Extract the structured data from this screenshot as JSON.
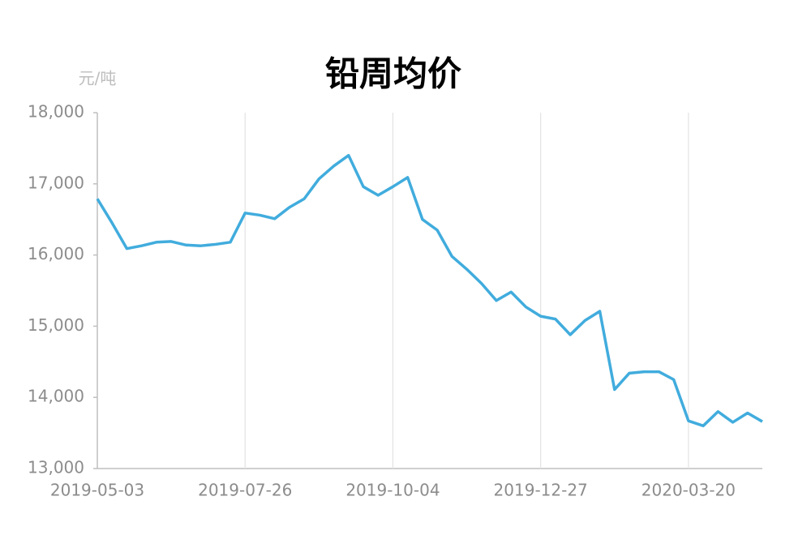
{
  "chart_data": {
    "type": "line",
    "title": "铅周均价",
    "y_unit": "元/吨",
    "categories": [
      "2019-05-03",
      null,
      null,
      null,
      null,
      null,
      null,
      null,
      null,
      null,
      "2019-07-26",
      null,
      null,
      null,
      null,
      null,
      null,
      null,
      null,
      null,
      "2019-10-04",
      null,
      null,
      null,
      null,
      null,
      null,
      null,
      null,
      null,
      "2019-12-27",
      null,
      null,
      null,
      null,
      null,
      null,
      null,
      null,
      null,
      "2020-03-20",
      null,
      null,
      null,
      null,
      null
    ],
    "values": [
      16790,
      16450,
      16090,
      16130,
      16180,
      16190,
      16140,
      16130,
      16150,
      16180,
      16590,
      16560,
      16510,
      16670,
      16790,
      17070,
      17250,
      17400,
      16960,
      16840,
      16960,
      17090,
      16500,
      16350,
      15980,
      15800,
      15600,
      15360,
      15480,
      15270,
      15140,
      15100,
      14880,
      15080,
      15210,
      14110,
      14340,
      14360,
      14360,
      14250,
      13670,
      13600,
      13800,
      13650,
      13780,
      13660
    ],
    "color": "#41acdd",
    "ylim": [
      13000,
      18000
    ],
    "yticks": [
      {
        "value": 13000,
        "label": "13,000"
      },
      {
        "value": 14000,
        "label": "14,000"
      },
      {
        "value": 15000,
        "label": "15,000"
      },
      {
        "value": 16000,
        "label": "16,000"
      },
      {
        "value": 17000,
        "label": "17,000"
      },
      {
        "value": 18000,
        "label": "18,000"
      }
    ],
    "grid": true
  }
}
